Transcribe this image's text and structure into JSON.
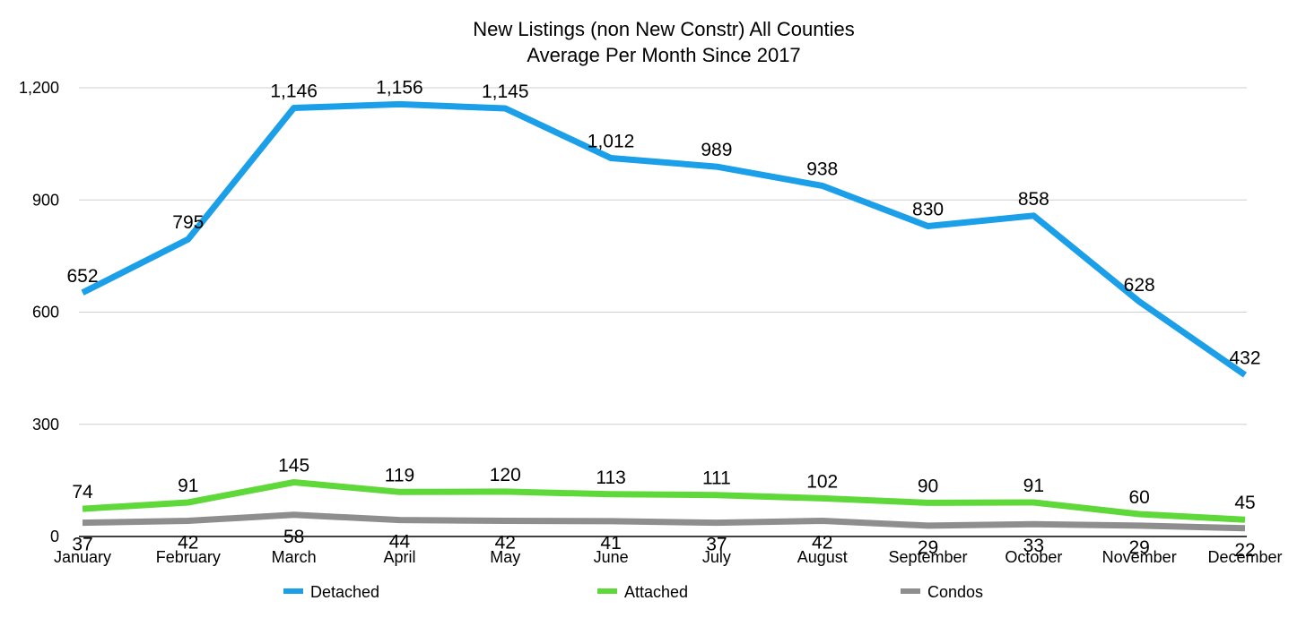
{
  "chart_data": {
    "type": "line",
    "title": "New Listings (non New Constr) All Counties",
    "subtitle": "Average Per Month Since 2017",
    "xlabel": "",
    "ylabel": "",
    "categories": [
      "January",
      "February",
      "March",
      "April",
      "May",
      "June",
      "July",
      "August",
      "September",
      "October",
      "November",
      "December"
    ],
    "ylim": [
      0,
      1200
    ],
    "yticks": [
      0,
      300,
      600,
      900,
      1200
    ],
    "ytick_labels": [
      "0",
      "300",
      "600",
      "900",
      "1,200"
    ],
    "grid": true,
    "legend_position": "bottom",
    "series": [
      {
        "name": "Detached",
        "color": "#1A9FE8",
        "values": [
          652,
          795,
          1146,
          1156,
          1145,
          1012,
          989,
          938,
          830,
          858,
          628,
          432
        ],
        "labels": [
          "652",
          "795",
          "1,146",
          "1,156",
          "1,145",
          "1,012",
          "989",
          "938",
          "830",
          "858",
          "628",
          "432"
        ]
      },
      {
        "name": "Attached",
        "color": "#5FD83A",
        "values": [
          74,
          91,
          145,
          119,
          120,
          113,
          111,
          102,
          90,
          91,
          60,
          45
        ],
        "labels": [
          "74",
          "91",
          "145",
          "119",
          "120",
          "113",
          "111",
          "102",
          "90",
          "91",
          "60",
          "45"
        ]
      },
      {
        "name": "Condos",
        "color": "#8E8E8E",
        "values": [
          37,
          42,
          58,
          44,
          42,
          41,
          37,
          42,
          29,
          33,
          29,
          22
        ],
        "labels": [
          "37",
          "42",
          "58",
          "44",
          "42",
          "41",
          "37",
          "42",
          "29",
          "33",
          "29",
          "22"
        ]
      }
    ]
  }
}
